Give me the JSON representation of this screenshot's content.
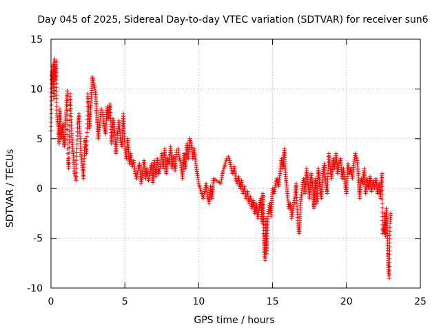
{
  "chart_data": {
    "type": "scatter",
    "title": "Day 045 of 2025, Sidereal Day-to-day VTEC variation (SDTVAR) for receiver sun6",
    "xlabel": "GPS time / hours",
    "ylabel": "SDTVAR / TECUs",
    "xlim": [
      0,
      25
    ],
    "ylim": [
      -10,
      15
    ],
    "xticks": [
      0,
      5,
      10,
      15,
      20,
      25
    ],
    "yticks": [
      -10,
      -5,
      0,
      5,
      10,
      15
    ],
    "grid": true,
    "marker": "+",
    "color": "#ff0000",
    "series": [
      {
        "name": "SDTVAR",
        "points": [
          [
            0.0,
            5.8
          ],
          [
            0.05,
            11.8
          ],
          [
            0.1,
            10.5
          ],
          [
            0.15,
            12.5
          ],
          [
            0.2,
            9.0
          ],
          [
            0.25,
            13.0
          ],
          [
            0.3,
            11.0
          ],
          [
            0.35,
            12.8
          ],
          [
            0.4,
            7.5
          ],
          [
            0.5,
            6.0
          ],
          [
            0.55,
            4.5
          ],
          [
            0.6,
            8.0
          ],
          [
            0.7,
            5.0
          ],
          [
            0.8,
            6.5
          ],
          [
            0.9,
            4.2
          ],
          [
            1.0,
            7.0
          ],
          [
            1.1,
            9.8
          ],
          [
            1.15,
            3.0
          ],
          [
            1.2,
            2.0
          ],
          [
            1.3,
            9.5
          ],
          [
            1.4,
            5.5
          ],
          [
            1.5,
            3.5
          ],
          [
            1.6,
            1.5
          ],
          [
            1.7,
            0.8
          ],
          [
            1.8,
            6.5
          ],
          [
            1.9,
            7.5
          ],
          [
            2.0,
            4.0
          ],
          [
            2.1,
            2.5
          ],
          [
            2.2,
            1.0
          ],
          [
            2.3,
            5.0
          ],
          [
            2.4,
            3.5
          ],
          [
            2.5,
            9.5
          ],
          [
            2.6,
            6.0
          ],
          [
            2.7,
            8.5
          ],
          [
            2.8,
            11.2
          ],
          [
            2.9,
            10.5
          ],
          [
            3.0,
            9.8
          ],
          [
            3.1,
            7.5
          ],
          [
            3.2,
            5.0
          ],
          [
            3.3,
            6.5
          ],
          [
            3.4,
            8.0
          ],
          [
            3.5,
            7.8
          ],
          [
            3.6,
            6.0
          ],
          [
            3.7,
            5.5
          ],
          [
            3.8,
            8.2
          ],
          [
            3.9,
            7.0
          ],
          [
            4.0,
            8.5
          ],
          [
            4.1,
            4.5
          ],
          [
            4.2,
            7.0
          ],
          [
            4.3,
            6.0
          ],
          [
            4.4,
            3.5
          ],
          [
            4.5,
            5.5
          ],
          [
            4.6,
            6.8
          ],
          [
            4.7,
            5.0
          ],
          [
            4.8,
            4.2
          ],
          [
            4.9,
            7.5
          ],
          [
            5.0,
            4.0
          ],
          [
            5.1,
            3.0
          ],
          [
            5.2,
            5.0
          ],
          [
            5.3,
            2.5
          ],
          [
            5.4,
            3.5
          ],
          [
            5.5,
            2.2
          ],
          [
            5.6,
            2.8
          ],
          [
            5.7,
            1.5
          ],
          [
            5.8,
            1.0
          ],
          [
            5.9,
            2.0
          ],
          [
            6.0,
            2.5
          ],
          [
            6.1,
            0.5
          ],
          [
            6.2,
            1.5
          ],
          [
            6.3,
            2.8
          ],
          [
            6.4,
            1.0
          ],
          [
            6.5,
            2.0
          ],
          [
            6.6,
            0.8
          ],
          [
            6.7,
            1.5
          ],
          [
            6.8,
            2.5
          ],
          [
            6.9,
            0.6
          ],
          [
            7.0,
            2.8
          ],
          [
            7.1,
            1.2
          ],
          [
            7.2,
            3.0
          ],
          [
            7.3,
            1.5
          ],
          [
            7.4,
            2.2
          ],
          [
            7.5,
            3.5
          ],
          [
            7.6,
            2.0
          ],
          [
            7.7,
            4.0
          ],
          [
            7.8,
            1.5
          ],
          [
            7.9,
            3.0
          ],
          [
            8.0,
            2.5
          ],
          [
            8.1,
            4.2
          ],
          [
            8.2,
            2.0
          ],
          [
            8.3,
            3.2
          ],
          [
            8.4,
            1.8
          ],
          [
            8.5,
            3.8
          ],
          [
            8.6,
            4.0
          ],
          [
            8.7,
            3.0
          ],
          [
            8.8,
            2.5
          ],
          [
            8.9,
            1.0
          ],
          [
            9.0,
            3.5
          ],
          [
            9.1,
            2.0
          ],
          [
            9.2,
            4.5
          ],
          [
            9.3,
            3.0
          ],
          [
            9.4,
            5.0
          ],
          [
            9.5,
            4.5
          ],
          [
            9.6,
            3.0
          ],
          [
            9.7,
            4.0
          ],
          [
            9.8,
            2.5
          ],
          [
            9.9,
            1.5
          ],
          [
            10.0,
            0.5
          ],
          [
            10.1,
            0.0
          ],
          [
            10.2,
            -0.5
          ],
          [
            10.3,
            -1.0
          ],
          [
            10.4,
            -0.3
          ],
          [
            10.5,
            0.5
          ],
          [
            10.6,
            -0.8
          ],
          [
            10.7,
            -1.5
          ],
          [
            10.8,
            0.2
          ],
          [
            10.9,
            -1.0
          ],
          [
            11.0,
            1.0
          ],
          [
            11.5,
            0.5
          ],
          [
            11.6,
            1.5
          ],
          [
            11.7,
            2.0
          ],
          [
            11.8,
            2.5
          ],
          [
            11.9,
            3.0
          ],
          [
            12.0,
            3.2
          ],
          [
            12.1,
            2.8
          ],
          [
            12.2,
            2.0
          ],
          [
            12.3,
            1.5
          ],
          [
            12.4,
            2.2
          ],
          [
            12.5,
            1.0
          ],
          [
            12.6,
            0.5
          ],
          [
            12.7,
            1.2
          ],
          [
            12.8,
            0.0
          ],
          [
            12.9,
            0.8
          ],
          [
            13.0,
            -0.5
          ],
          [
            13.1,
            0.2
          ],
          [
            13.2,
            -1.0
          ],
          [
            13.3,
            -0.3
          ],
          [
            13.4,
            -1.5
          ],
          [
            13.5,
            -0.8
          ],
          [
            13.6,
            -2.0
          ],
          [
            13.7,
            -1.2
          ],
          [
            13.8,
            -2.5
          ],
          [
            13.9,
            -1.5
          ],
          [
            14.0,
            -3.0
          ],
          [
            14.1,
            -2.0
          ],
          [
            14.2,
            -1.0
          ],
          [
            14.3,
            -3.5
          ],
          [
            14.35,
            -0.5
          ],
          [
            14.4,
            -4.5
          ],
          [
            14.45,
            -6.8
          ],
          [
            14.5,
            -7.2
          ],
          [
            14.55,
            -3.0
          ],
          [
            14.6,
            -6.5
          ],
          [
            14.7,
            -2.5
          ],
          [
            14.8,
            -1.5
          ],
          [
            14.9,
            -2.8
          ],
          [
            15.0,
            0.0
          ],
          [
            15.1,
            -0.5
          ],
          [
            15.2,
            0.5
          ],
          [
            15.3,
            1.0
          ],
          [
            15.4,
            0.2
          ],
          [
            15.5,
            1.5
          ],
          [
            15.6,
            3.0
          ],
          [
            15.7,
            2.0
          ],
          [
            15.8,
            4.0
          ],
          [
            15.9,
            1.0
          ],
          [
            16.0,
            -0.5
          ],
          [
            16.1,
            -2.0
          ],
          [
            16.2,
            -1.5
          ],
          [
            16.3,
            -3.0
          ],
          [
            16.4,
            -2.0
          ],
          [
            16.5,
            -1.0
          ],
          [
            16.6,
            0.5
          ],
          [
            16.7,
            -3.5
          ],
          [
            16.8,
            -4.5
          ],
          [
            16.9,
            -1.5
          ],
          [
            17.0,
            0.0
          ],
          [
            17.1,
            1.0
          ],
          [
            17.2,
            -0.5
          ],
          [
            17.3,
            2.0
          ],
          [
            17.4,
            0.5
          ],
          [
            17.5,
            -1.0
          ],
          [
            17.6,
            1.5
          ],
          [
            17.7,
            0.5
          ],
          [
            17.8,
            -2.0
          ],
          [
            17.9,
            1.0
          ],
          [
            18.0,
            -1.5
          ],
          [
            18.1,
            2.0
          ],
          [
            18.2,
            0.0
          ],
          [
            18.3,
            -1.0
          ],
          [
            18.4,
            1.5
          ],
          [
            18.5,
            2.5
          ],
          [
            18.6,
            0.5
          ],
          [
            18.7,
            -0.5
          ],
          [
            18.8,
            3.5
          ],
          [
            18.9,
            2.0
          ],
          [
            19.0,
            1.0
          ],
          [
            19.1,
            3.0
          ],
          [
            19.2,
            2.0
          ],
          [
            19.3,
            3.5
          ],
          [
            19.4,
            1.5
          ],
          [
            19.5,
            2.5
          ],
          [
            19.6,
            3.0
          ],
          [
            19.7,
            1.0
          ],
          [
            19.8,
            2.0
          ],
          [
            19.9,
            0.5
          ],
          [
            20.0,
            -0.5
          ],
          [
            20.1,
            2.5
          ],
          [
            20.2,
            1.5
          ],
          [
            20.3,
            2.0
          ],
          [
            20.4,
            1.0
          ],
          [
            20.5,
            2.5
          ],
          [
            20.6,
            3.5
          ],
          [
            20.7,
            3.0
          ],
          [
            20.8,
            1.5
          ],
          [
            20.9,
            -1.0
          ],
          [
            21.0,
            1.0
          ],
          [
            21.1,
            0.5
          ],
          [
            21.2,
            2.0
          ],
          [
            21.3,
            -0.5
          ],
          [
            21.4,
            1.0
          ],
          [
            21.5,
            0.0
          ],
          [
            21.6,
            1.2
          ],
          [
            21.7,
            -0.3
          ],
          [
            21.8,
            0.8
          ],
          [
            21.9,
            0.0
          ],
          [
            22.0,
            1.0
          ],
          [
            22.1,
            -0.5
          ],
          [
            22.2,
            0.5
          ],
          [
            22.3,
            -1.0
          ],
          [
            22.4,
            1.5
          ],
          [
            22.45,
            -4.5
          ],
          [
            22.5,
            -4.0
          ],
          [
            22.55,
            -4.5
          ],
          [
            22.6,
            -2.5
          ],
          [
            22.65,
            -4.8
          ],
          [
            22.7,
            -2.0
          ],
          [
            22.75,
            -3.0
          ],
          [
            22.8,
            -6.5
          ],
          [
            22.85,
            -8.5
          ],
          [
            22.9,
            -9.0
          ],
          [
            22.95,
            -3.5
          ],
          [
            23.0,
            -2.5
          ]
        ]
      }
    ]
  }
}
